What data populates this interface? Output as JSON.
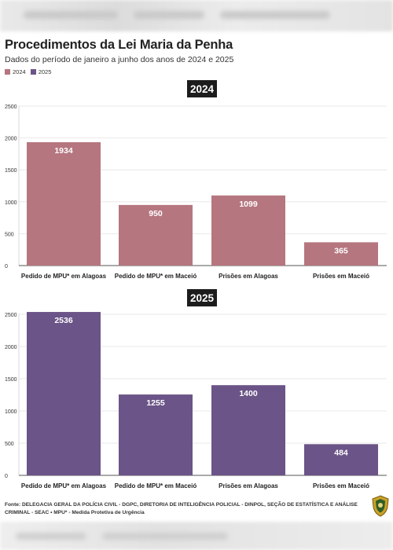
{
  "header": {
    "title": "Procedimentos da Lei Maria da Penha",
    "subtitle": "Dados do período de janeiro a junho dos anos de 2024 e 2025"
  },
  "legend": [
    {
      "label": "2024",
      "color": "#b5767f"
    },
    {
      "label": "2025",
      "color": "#6b5487"
    }
  ],
  "chart_data": [
    {
      "type": "bar",
      "title": "2024",
      "categories": [
        "Pedido de MPU* em Alagoas",
        "Pedido de MPU* em Maceió",
        "Prisões em Alagoas",
        "Prisões em Maceió"
      ],
      "series": [
        {
          "name": "2024",
          "values": [
            1934,
            950,
            1099,
            365
          ],
          "color": "#b5767f"
        }
      ],
      "ylim": [
        0,
        2500
      ],
      "yticks": [
        0,
        500,
        1000,
        1500,
        2000,
        2500
      ],
      "grid": true
    },
    {
      "type": "bar",
      "title": "2025",
      "categories": [
        "Pedido de MPU* em Alagoas",
        "Pedido de MPU* em Maceió",
        "Prisões em Alagoas",
        "Prisões em Maceió"
      ],
      "series": [
        {
          "name": "2025",
          "values": [
            2536,
            1255,
            1400,
            484
          ],
          "color": "#6b5487"
        }
      ],
      "ylim": [
        0,
        2500
      ],
      "yticks": [
        0,
        500,
        1000,
        1500,
        2000,
        2500
      ],
      "grid": true
    }
  ],
  "footer": {
    "source": "Fonte: DELEGACIA GERAL DA POLÍCIA CIVIL - DGPC, DIRETORIA DE INTELIGÊNCIA POLICIAL - DINPOL, SEÇÃO DE ESTATÍSTICA E ANÁLISE CRIMINAL - SEAC • MPU* - Medida Protetiva de Urgência"
  },
  "icons": {
    "seal": "police-badge-icon"
  }
}
